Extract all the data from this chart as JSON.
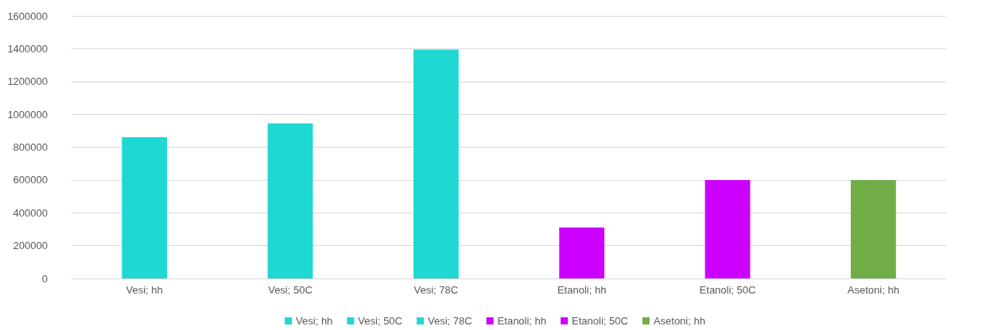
{
  "chart_data": {
    "type": "bar",
    "categories": [
      "Vesi; hh",
      "Vesi; 50C",
      "Vesi; 78C",
      "Etanoli; hh",
      "Etanoli; 50C",
      "Asetoni; hh"
    ],
    "series": [
      {
        "name": "Vesi; hh",
        "color": "#1fd8d4",
        "values": [
          860000,
          null,
          null,
          null,
          null,
          null
        ]
      },
      {
        "name": "Vesi; 50C",
        "color": "#1fd8d4",
        "values": [
          null,
          945000,
          null,
          null,
          null,
          null
        ]
      },
      {
        "name": "Vesi; 78C",
        "color": "#1fd8d4",
        "values": [
          null,
          null,
          1395000,
          null,
          null,
          null
        ]
      },
      {
        "name": "Etanoli; hh",
        "color": "#cc00ff",
        "values": [
          null,
          null,
          null,
          310000,
          null,
          null
        ]
      },
      {
        "name": "Etanoli; 50C",
        "color": "#cc00ff",
        "values": [
          null,
          null,
          null,
          null,
          600000,
          null
        ]
      },
      {
        "name": "Asetoni; hh",
        "color": "#70ad47",
        "values": [
          null,
          null,
          null,
          null,
          null,
          600000
        ]
      }
    ],
    "ylim": [
      0,
      1600000
    ],
    "yticks": [
      0,
      200000,
      400000,
      600000,
      800000,
      1000000,
      1200000,
      1400000,
      1600000
    ],
    "grid": "y",
    "legend": "bottom"
  }
}
